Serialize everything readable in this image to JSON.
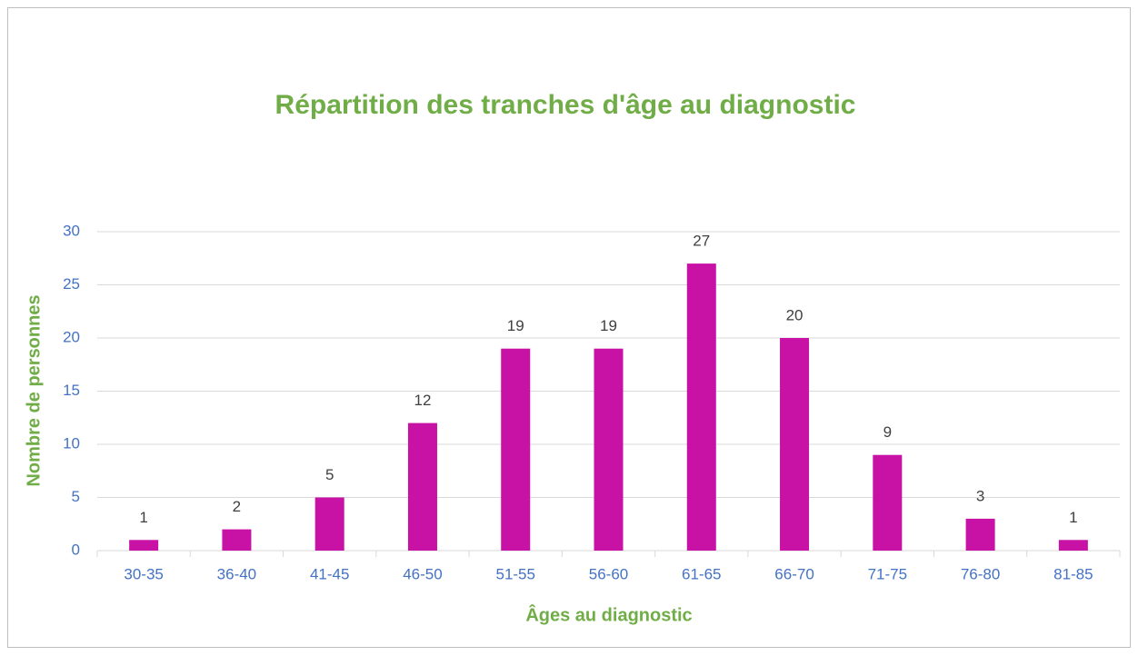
{
  "chart_data": {
    "type": "bar",
    "title": "Répartition des tranches d'âge au diagnostic",
    "x_label": "Âges au diagnostic",
    "y_label": "Nombre de  personnes",
    "categories": [
      "30-35",
      "36-40",
      "41-45",
      "46-50",
      "51-55",
      "56-60",
      "61-65",
      "66-70",
      "71-75",
      "76-80",
      "81-85"
    ],
    "values": [
      1,
      2,
      5,
      12,
      19,
      19,
      27,
      20,
      9,
      3,
      1
    ],
    "color": "#c811a5",
    "ylim": [
      0,
      30
    ],
    "yticks": [
      0,
      5,
      10,
      15,
      20,
      25,
      30
    ],
    "grid": true
  }
}
